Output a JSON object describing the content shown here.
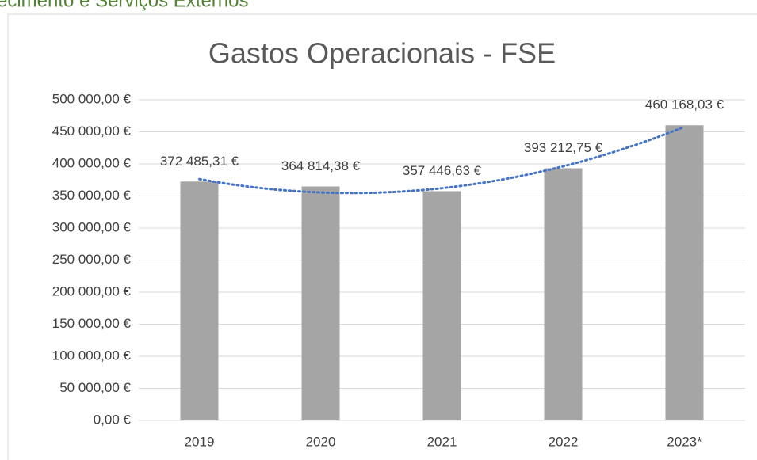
{
  "heading": "ecimento e Serviços Externos",
  "chart_data": {
    "type": "bar",
    "title": "Gastos Operacionais - FSE",
    "categories": [
      "2019",
      "2020",
      "2021",
      "2022",
      "2023*"
    ],
    "values": [
      372485.31,
      364814.38,
      357446.63,
      393212.75,
      460168.03
    ],
    "value_labels": [
      "372 485,31 €",
      "364 814,38 €",
      "357 446,63 €",
      "393 212,75 €",
      "460 168,03 €"
    ],
    "color": "#a5a5a5",
    "ylim": [
      0,
      500000
    ],
    "yticks": [
      {
        "value": 0,
        "label": "0,00 €"
      },
      {
        "value": 50000,
        "label": "50 000,00 €"
      },
      {
        "value": 100000,
        "label": "100 000,00 €"
      },
      {
        "value": 150000,
        "label": "150 000,00 €"
      },
      {
        "value": 200000,
        "label": "200 000,00 €"
      },
      {
        "value": 250000,
        "label": "250 000,00 €"
      },
      {
        "value": 300000,
        "label": "300 000,00 €"
      },
      {
        "value": 350000,
        "label": "350 000,00 €"
      },
      {
        "value": 400000,
        "label": "400 000,00 €"
      },
      {
        "value": 450000,
        "label": "450 000,00 €"
      },
      {
        "value": 500000,
        "label": "500 000,00 €"
      }
    ],
    "grid": true,
    "trendline": {
      "order": 2,
      "color": "#4472c4"
    }
  }
}
